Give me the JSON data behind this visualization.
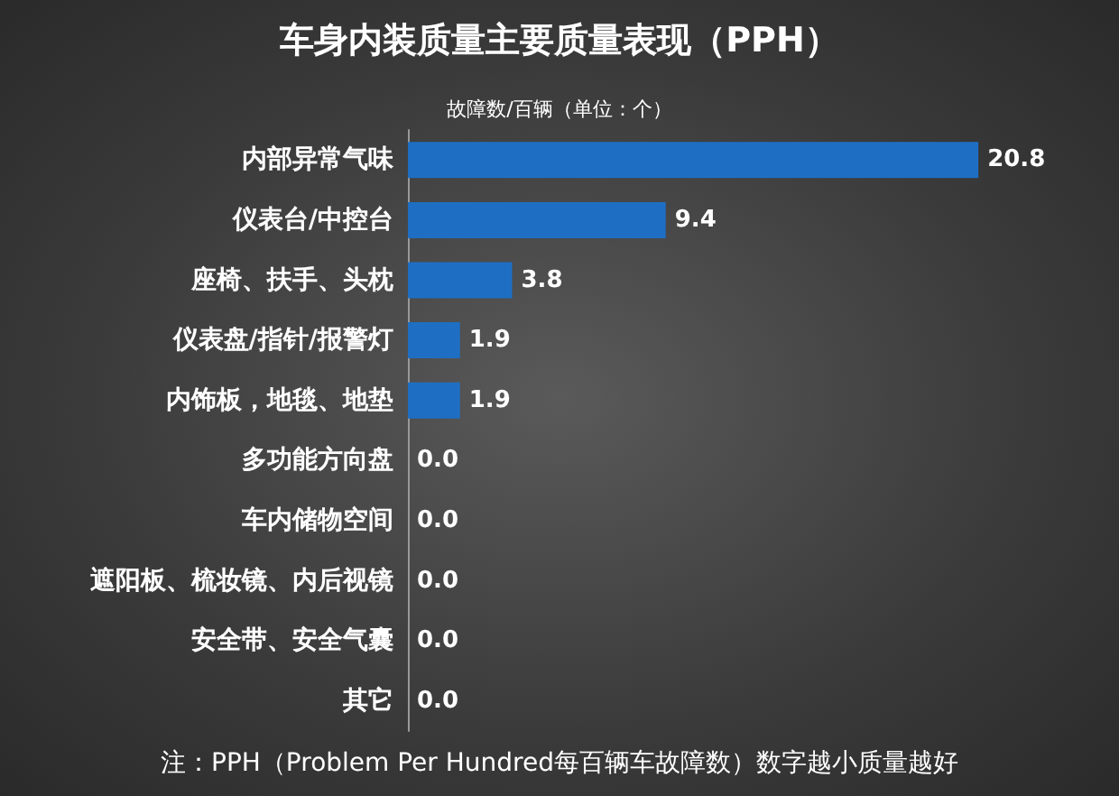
{
  "chart_data": {
    "type": "bar",
    "orientation": "horizontal",
    "title": "车身内装质量主要质量表现（PPH）",
    "subtitle": "故障数/百辆（单位：个）",
    "categories": [
      "内部异常气味",
      "仪表台/中控台",
      "座椅、扶手、头枕",
      "仪表盘/指针/报警灯",
      "内饰板，地毯、地垫",
      "多功能方向盘",
      "车内储物空间",
      "遮阳板、梳妆镜、内后视镜",
      "安全带、安全气囊",
      "其它"
    ],
    "values": [
      20.8,
      9.4,
      3.8,
      1.9,
      1.9,
      0.0,
      0.0,
      0.0,
      0.0,
      0.0
    ],
    "value_labels": [
      "20.8",
      "9.4",
      "3.8",
      "1.9",
      "1.9",
      "0.0",
      "0.0",
      "0.0",
      "0.0",
      "0.0"
    ],
    "color": "#1e6fc4",
    "annotations": [
      "注：PPH（Problem Per Hundred每百辆车故障数）数字越小质量越好"
    ]
  }
}
